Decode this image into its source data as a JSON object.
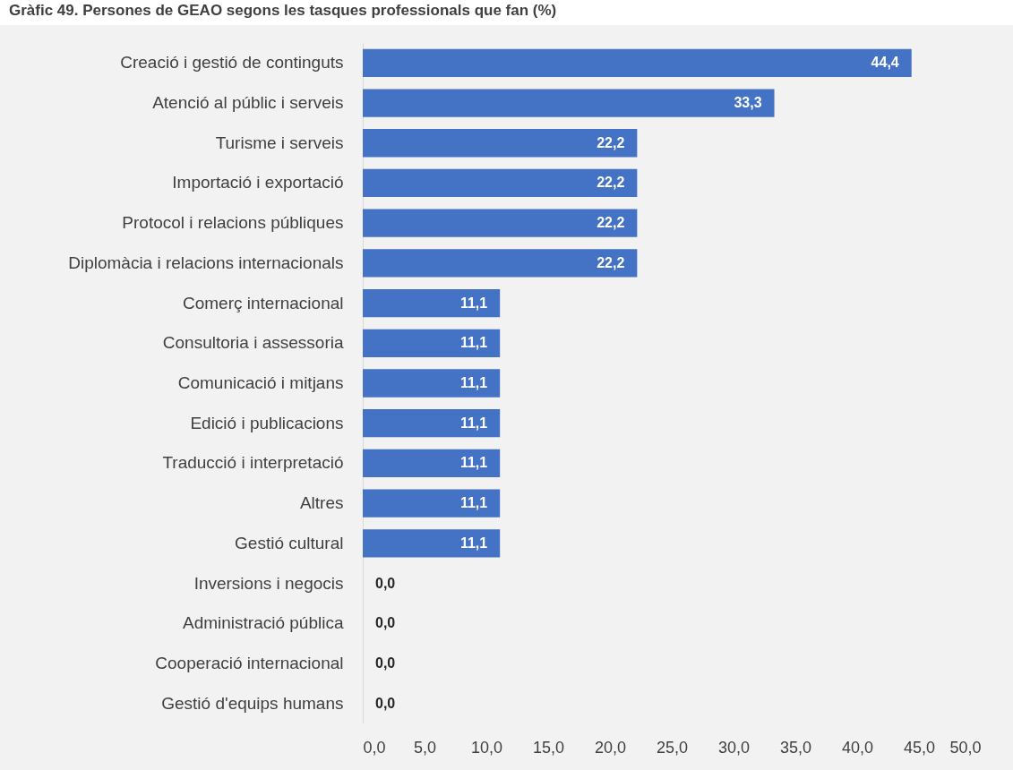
{
  "chart_data": {
    "type": "bar",
    "orientation": "horizontal",
    "title": "Gràfic 49. Persones de GEAO segons les tasques professionals que fan (%)",
    "categories": [
      "Creació i gestió de continguts",
      "Atenció al públic i serveis",
      "Turisme i serveis",
      "Importació i exportació",
      "Protocol i relacions públiques",
      "Diplomàcia i relacions internacionals",
      "Comerç internacional",
      "Consultoria i assessoria",
      "Comunicació i mitjans",
      "Edició i publicacions",
      "Traducció i interpretació",
      "Altres",
      "Gestió cultural",
      "Inversions i negocis",
      "Administració pública",
      "Cooperació internacional",
      "Gestió d'equips humans"
    ],
    "values": [
      44.4,
      33.3,
      22.2,
      22.2,
      22.2,
      22.2,
      11.1,
      11.1,
      11.1,
      11.1,
      11.1,
      11.1,
      11.1,
      0,
      0,
      0,
      0
    ],
    "value_labels": [
      "44,4",
      "33,3",
      "22,2",
      "22,2",
      "22,2",
      "22,2",
      "11,1",
      "11,1",
      "11,1",
      "11,1",
      "11,1",
      "11,1",
      "11,1",
      "0,0",
      "0,0",
      "0,0",
      "0,0"
    ],
    "color": "#4472c4",
    "xlim": [
      0,
      50
    ],
    "xticks": [
      {
        "value": 0,
        "label": "0,0"
      },
      {
        "value": 5,
        "label": "5,0"
      },
      {
        "value": 10,
        "label": "10,0"
      },
      {
        "value": 15,
        "label": "15,0"
      },
      {
        "value": 20,
        "label": "20,0"
      },
      {
        "value": 25,
        "label": "25,0"
      },
      {
        "value": 30,
        "label": "30,0"
      },
      {
        "value": 35,
        "label": "35,0"
      },
      {
        "value": 40,
        "label": "40,0"
      },
      {
        "value": 45,
        "label": "45,0"
      },
      {
        "value": 50,
        "label": "50,0"
      }
    ],
    "grid": false
  }
}
